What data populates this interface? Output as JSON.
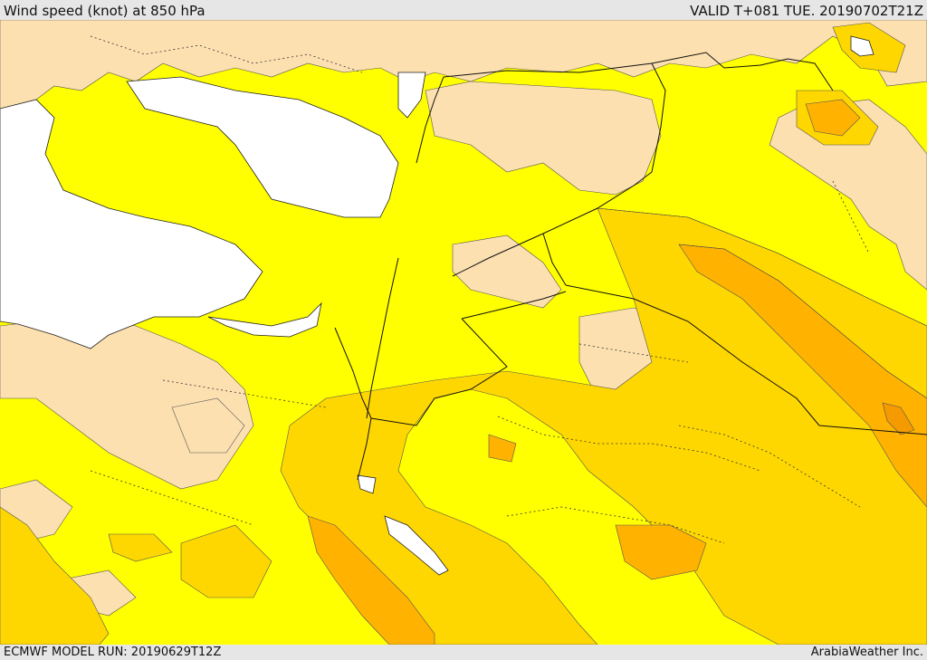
{
  "header": {
    "title": "Wind speed (knot) at 850 hPa",
    "valid": "VALID T+081 TUE. 20190702T21Z"
  },
  "footer": {
    "model_run": "ECMWF MODEL RUN: 20190629T12Z",
    "credit": "ArabiaWeather Inc."
  },
  "colors": {
    "sea": "#ffffff",
    "calm": "#fde0b0",
    "level1": "#ffff00",
    "level2": "#ffd700",
    "level3": "#ffb300",
    "level4": "#f59a00",
    "border": "#111111",
    "admin": "#333333"
  }
}
